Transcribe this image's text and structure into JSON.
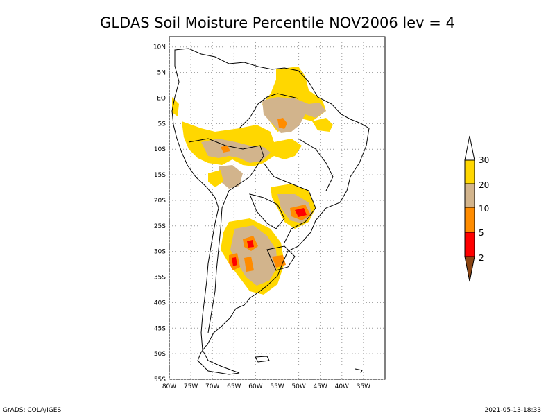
{
  "title": "GLDAS Soil Moisture Percentile NOV2006 lev = 4",
  "footer": {
    "left": "GrADS: COLA/IGES",
    "right": "2021-05-13-18:33"
  },
  "colors": {
    "c30": "#ffd700",
    "c20": "#d2b48c",
    "c10": "#ff8c00",
    "c5": "#ff0000",
    "c2": "#8b4513"
  },
  "legend": {
    "labels": [
      "30",
      "20",
      "10",
      "5",
      "2"
    ]
  },
  "map": {
    "lon_range": [
      -80,
      -30
    ],
    "lat_range": [
      -55,
      12
    ],
    "lon_ticks": [
      "80W",
      "75W",
      "70W",
      "65W",
      "60W",
      "55W",
      "50W",
      "45W",
      "40W",
      "35W"
    ],
    "lon_tick_values": [
      -80,
      -75,
      -70,
      -65,
      -60,
      -55,
      -50,
      -45,
      -40,
      -35
    ],
    "lat_ticks": [
      "10N",
      "5N",
      "EQ",
      "5S",
      "10S",
      "15S",
      "20S",
      "25S",
      "30S",
      "35S",
      "40S",
      "45S",
      "50S",
      "55S"
    ],
    "lat_tick_values": [
      10,
      5,
      0,
      -5,
      -10,
      -15,
      -20,
      -25,
      -30,
      -35,
      -40,
      -45,
      -50,
      -55
    ],
    "grid": true
  }
}
